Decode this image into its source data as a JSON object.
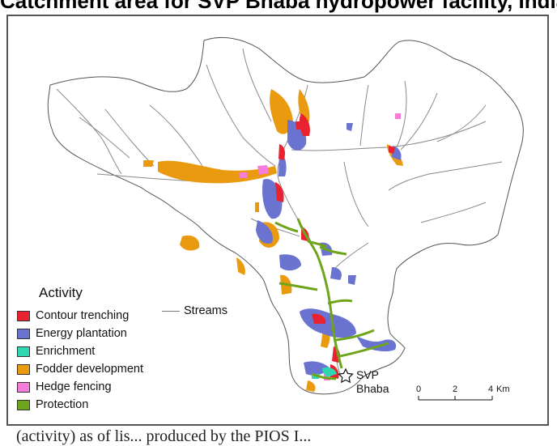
{
  "title": "Catchment area for SVP Bhaba hydropower facility, India",
  "legend": {
    "title": "Activity",
    "items": [
      {
        "label": "Contour trenching",
        "color": "#e8222e"
      },
      {
        "label": "Energy plantation",
        "color": "#6a73d0"
      },
      {
        "label": "Enrichment",
        "color": "#30d6b0"
      },
      {
        "label": "Fodder development",
        "color": "#e99a0e"
      },
      {
        "label": "Hedge fencing",
        "color": "#f57cd8"
      },
      {
        "label": "Protection",
        "color": "#6ea51a"
      }
    ],
    "streams_label": "Streams",
    "streams_color": "#777777"
  },
  "facility": {
    "name_line1": "SVP",
    "name_line2": "Bhaba",
    "icon": "star-outline-icon"
  },
  "scale_bar": {
    "ticks": [
      "0",
      "2",
      "4"
    ],
    "unit": "Km"
  },
  "caption": "(activity) as of lis...   produced by the PIOS I..."
}
